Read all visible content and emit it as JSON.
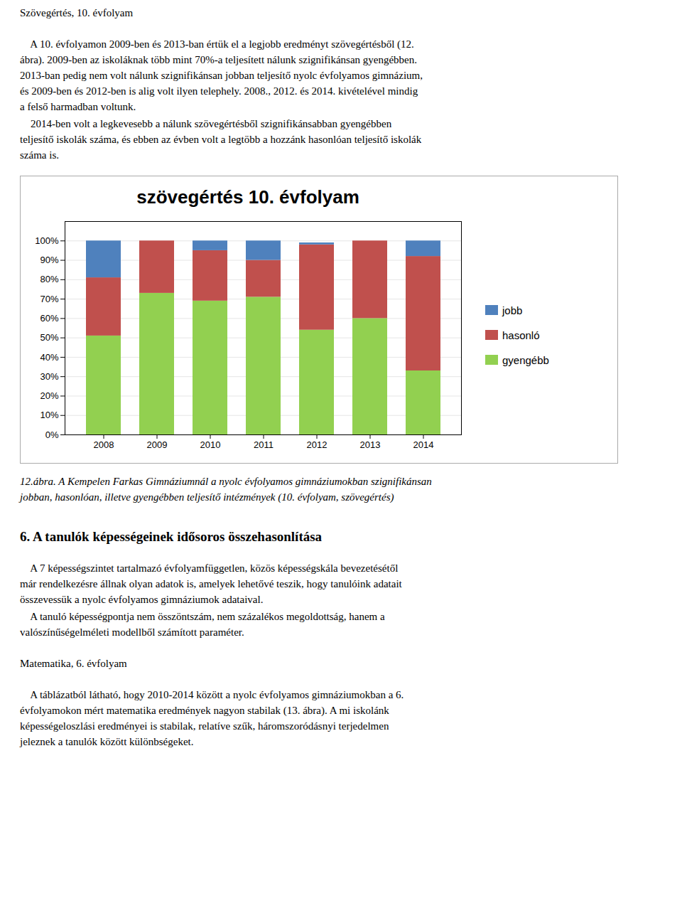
{
  "chart_data": {
    "type": "bar",
    "stacked": true,
    "title": "szövegértés 10. évfolyam",
    "categories": [
      "2008",
      "2009",
      "2010",
      "2011",
      "2012",
      "2013",
      "2014"
    ],
    "series": [
      {
        "name": "gyengébb",
        "color": "#92d050",
        "values": [
          51,
          73,
          69,
          71,
          54,
          60,
          33
        ]
      },
      {
        "name": "hasonló",
        "color": "#c0504d",
        "values": [
          30,
          27,
          26,
          19,
          44,
          40,
          59
        ]
      },
      {
        "name": "jobb",
        "color": "#4f81bd",
        "values": [
          19,
          0,
          5,
          10,
          1,
          0,
          8
        ]
      }
    ],
    "ylim": [
      0,
      110
    ],
    "yticks": [
      {
        "value": 0,
        "label": "0%"
      },
      {
        "value": 10,
        "label": "10%"
      },
      {
        "value": 20,
        "label": "20%"
      },
      {
        "value": 30,
        "label": "30%"
      },
      {
        "value": 40,
        "label": "40%"
      },
      {
        "value": 50,
        "label": "50%"
      },
      {
        "value": 60,
        "label": "60%"
      },
      {
        "value": 70,
        "label": "70%"
      },
      {
        "value": 80,
        "label": "80%"
      },
      {
        "value": 90,
        "label": "90%"
      },
      {
        "value": 100,
        "label": "100%"
      }
    ],
    "grid": true,
    "legend": "right"
  },
  "page": {
    "heading": "Szövegértés, 10. évfolyam",
    "intro": [
      [
        "    A 10. évfolyamon 2009-ben és 2013-ban értük el a legjobb eredményt szövegértésből (12.",
        "ábra). 2009-ben az iskoláknak több mint 70%-a teljesített nálunk szignifikánsan gyengébben.",
        "2013-ban pedig nem volt nálunk szignifikánsan jobban teljesítő nyolc évfolyamos gimnázium,",
        "és 2009-ben és 2012-ben is alig volt ilyen telephely. 2008., 2012. és 2014. kivételével mindig",
        "a felső harmadban voltunk."
      ],
      [
        "    2014-ben volt a legkevesebb a nálunk szövegértésből szignifikánsabban gyengébben",
        "teljesítő iskolák száma, és ebben az évben volt a legtöbb a hozzánk hasonlóan teljesítő iskolák",
        "száma is."
      ]
    ],
    "caption": [
      "12.ábra. A Kempelen Farkas Gimnáziumnál a nyolc évfolyamos gimnáziumokban szignifikánsan",
      "jobban, hasonlóan, illetve gyengébben teljesítő intézmények (10. évfolyam, szövegértés)"
    ],
    "section_heading": "6. A tanulók képességeinek idősoros összehasonlítása",
    "section_text": [
      [
        "    A 7 képességszintet tartalmazó évfolyamfüggetlen, közös képességskála bevezetésétől",
        "már rendelkezésre állnak olyan adatok is, amelyek lehetővé teszik, hogy tanulóink adatait",
        "összevessük a nyolc évfolyamos gimnáziumok adataival."
      ],
      [
        "    A tanuló képességpontja nem összöntszám, nem százalékos megoldottság, hanem a",
        "valószínűségelméleti modellből számított paraméter."
      ]
    ],
    "subheading": "Matematika, 6. évfolyam",
    "subsection_text": [
      [
        "    A táblázatból látható, hogy 2010-2014 között a nyolc évfolyamos gimnáziumokban a 6.",
        "évfolyamokon mért matematika eredmények nagyon stabilak (13. ábra). A mi iskolánk",
        "képességeloszlási eredményei is stabilak, relatíve szűk, háromszoródásnyi terjedelmen",
        "jeleznek a tanulók között különbségeket."
      ]
    ]
  }
}
